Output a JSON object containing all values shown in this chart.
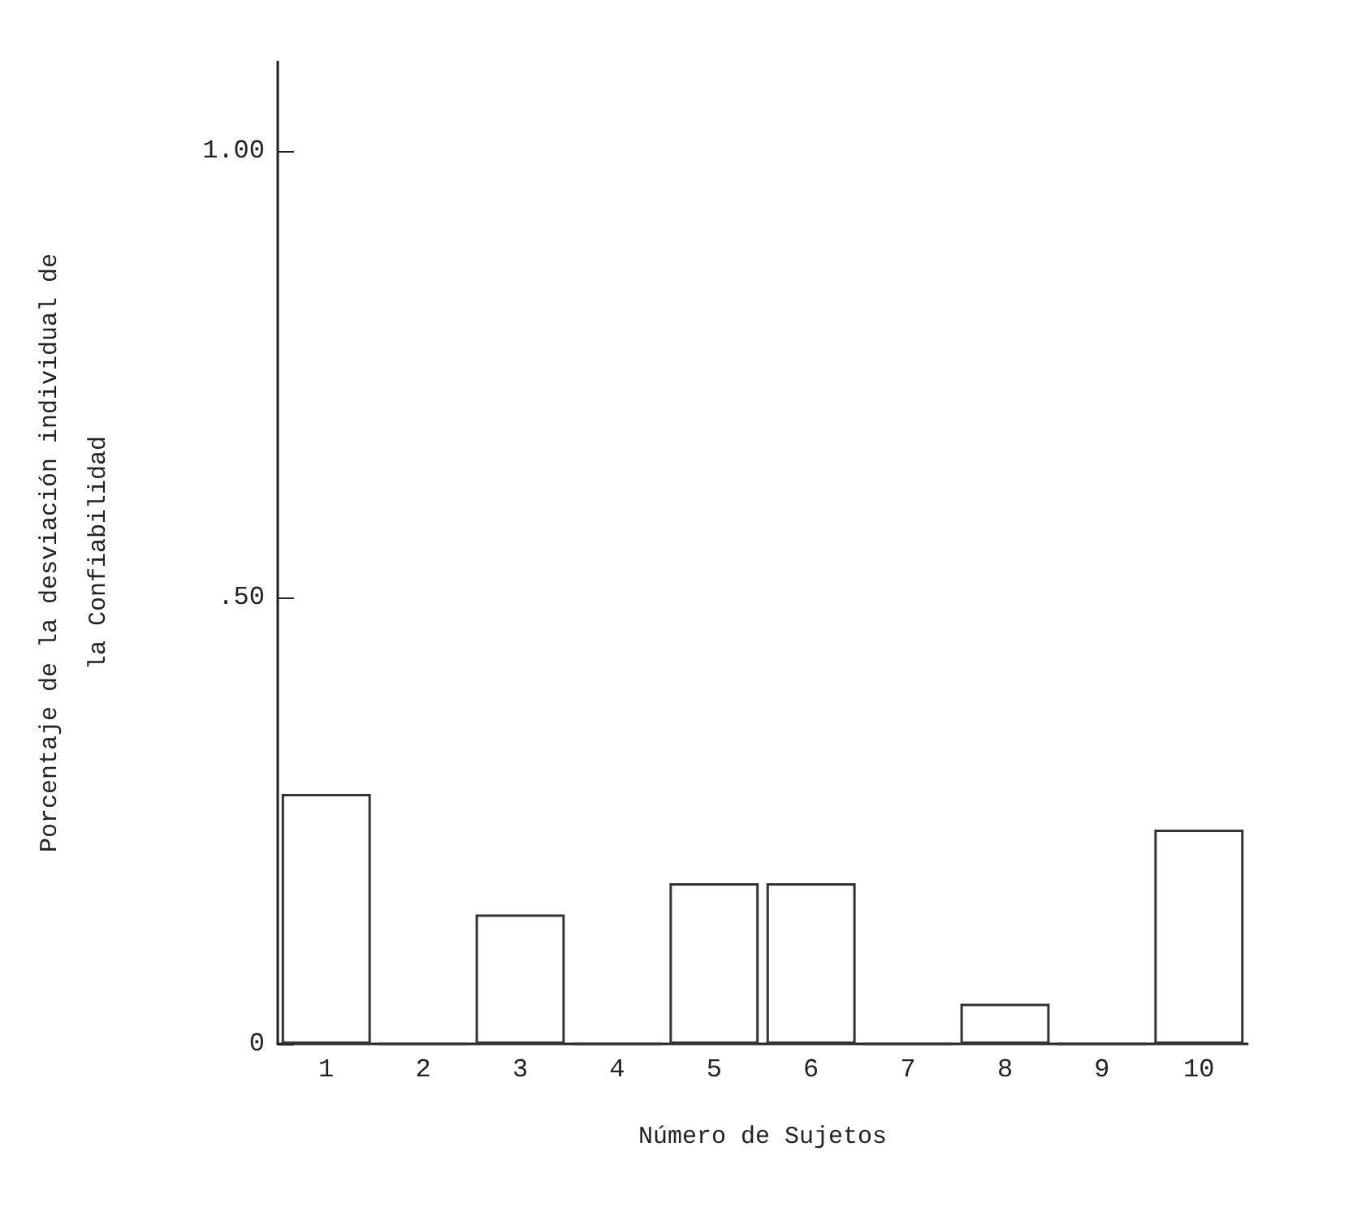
{
  "chart_data": {
    "type": "bar",
    "xlabel": "Número de Sujetos",
    "ylabel": "Porcentaje de la desviación individual de\nla Confiabilidad",
    "categories": [
      "1",
      "2",
      "3",
      "4",
      "5",
      "6",
      "7",
      "8",
      "9",
      "10"
    ],
    "values": [
      0.28,
      0,
      0.145,
      0,
      0.18,
      0.18,
      0,
      0.045,
      0,
      0.24
    ],
    "color": "#333333",
    "ylim": [
      0,
      1.1
    ],
    "yticks": [
      {
        "value": 0,
        "label": "0"
      },
      {
        "value": 0.5,
        "label": ".50"
      },
      {
        "value": 1,
        "label": "1.00"
      }
    ],
    "grid": false
  }
}
